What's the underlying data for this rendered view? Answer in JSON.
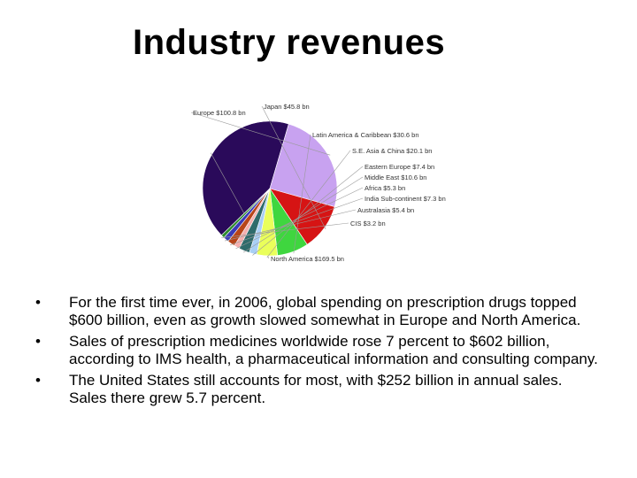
{
  "title": "Industry revenues",
  "chart_data": {
    "type": "pie",
    "title": "",
    "slices": [
      {
        "label": "North America $169.5 bn",
        "value": 169.5,
        "color": "#2a0a5a"
      },
      {
        "label": "Europe $100.8 bn",
        "value": 100.8,
        "color": "#c8a2f0"
      },
      {
        "label": "Japan $45.8 bn",
        "value": 45.8,
        "color": "#d61414"
      },
      {
        "label": "Latin America & Caribbean $30.6 bn",
        "value": 30.6,
        "color": "#3fd63f"
      },
      {
        "label": "S.E. Asia & China $20.1 bn",
        "value": 20.1,
        "color": "#eaff5a"
      },
      {
        "label": "Eastern Europe $7.4 bn",
        "value": 7.4,
        "color": "#a9d0f5"
      },
      {
        "label": "Middle East $10.6 bn",
        "value": 10.6,
        "color": "#2e6b6b"
      },
      {
        "label": "Africa $5.3 bn",
        "value": 5.3,
        "color": "#f5b0b0"
      },
      {
        "label": "India Sub-continent $7.3 bn",
        "value": 7.3,
        "color": "#b8451a"
      },
      {
        "label": "Australasia $5.4 bn",
        "value": 5.4,
        "color": "#3a3ab8"
      },
      {
        "label": "CIS $3.2 bn",
        "value": 3.2,
        "color": "#2e8b2e"
      }
    ]
  },
  "bullets": [
    {
      "mark": "•",
      "text": "For the first time ever, in 2006, global spending on prescription drugs topped $600 billion, even as growth slowed somewhat in Europe and North America."
    },
    {
      "mark": "•",
      "text": "Sales of prescription medicines worldwide rose 7 percent to $602 billion, according to IMS health, a pharmaceutical information and consulting company."
    },
    {
      "mark": "•",
      "text": "The United States still accounts for most, with $252 billion in annual sales. Sales there grew 5.7 percent."
    }
  ]
}
